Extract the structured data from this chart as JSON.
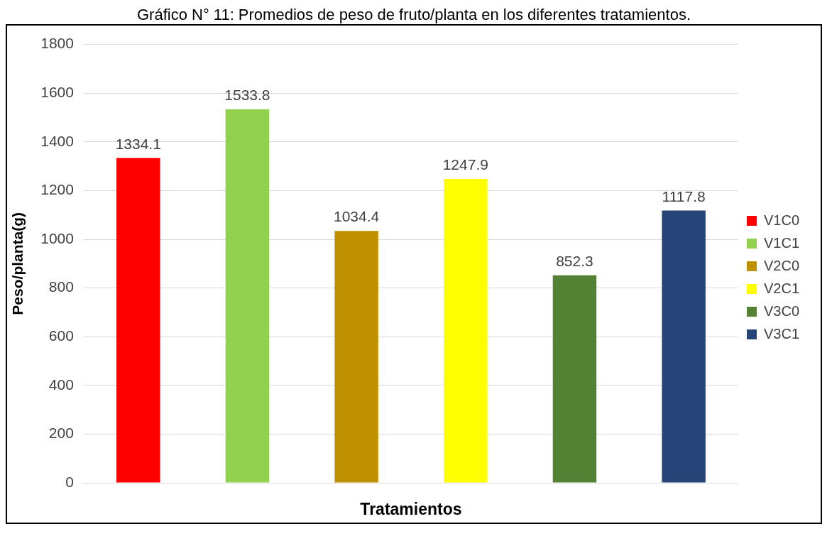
{
  "chart_data": {
    "type": "bar",
    "title": "Gráfico N° 11: Promedios de peso de fruto/planta en los diferentes tratamientos.",
    "xlabel": "Tratamientos",
    "ylabel": "Peso/planta(g)",
    "categories": [
      null,
      null,
      null,
      null,
      null,
      null
    ],
    "series": [
      {
        "name": "V1C0",
        "color": "#ff0000",
        "values": [
          1334.1,
          null,
          null,
          null,
          null,
          null
        ]
      },
      {
        "name": "V1C1",
        "color": "#92d050",
        "values": [
          null,
          1533.8,
          null,
          null,
          null,
          null
        ]
      },
      {
        "name": "V2C0",
        "color": "#bf9000",
        "values": [
          null,
          null,
          1034.4,
          null,
          null,
          null
        ]
      },
      {
        "name": "V2C1",
        "color": "#ffff00",
        "values": [
          null,
          null,
          null,
          1247.9,
          null,
          null
        ]
      },
      {
        "name": "V3C0",
        "color": "#548235",
        "values": [
          null,
          null,
          null,
          null,
          852.3,
          null
        ]
      },
      {
        "name": "V3C1",
        "color": "#264478",
        "values": [
          null,
          null,
          null,
          null,
          null,
          1117.8
        ]
      }
    ],
    "ylim": [
      0,
      1800
    ],
    "yticks": [
      0,
      200,
      400,
      600,
      800,
      1000,
      1200,
      1400,
      1600,
      1800
    ],
    "grid": "y",
    "legend": "right",
    "data_labels": true
  }
}
